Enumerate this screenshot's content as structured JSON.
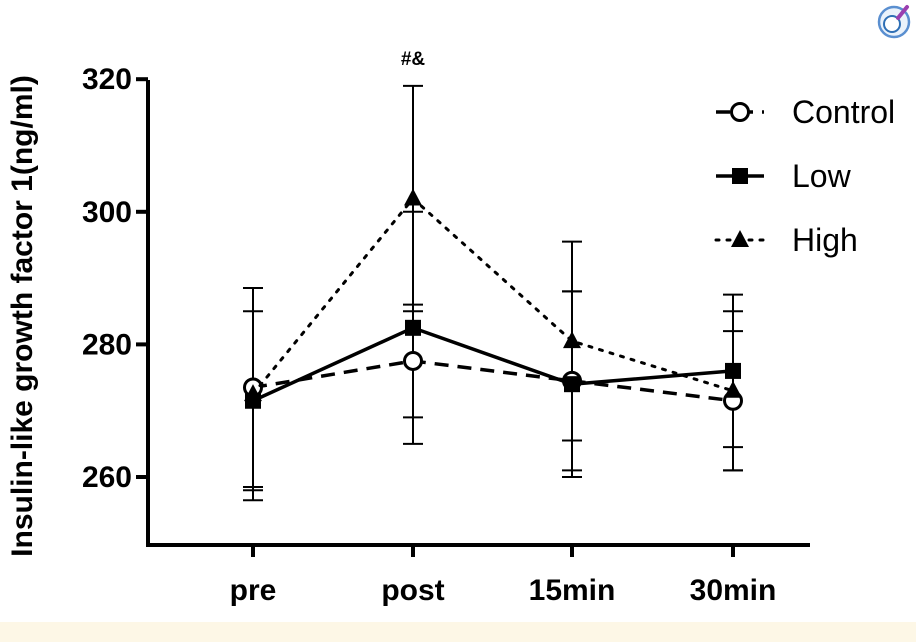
{
  "chart_data": {
    "type": "line",
    "title": "",
    "xlabel": "",
    "ylabel": "Insulin-like growth factor 1(ng/ml)",
    "categories": [
      "pre",
      "post",
      "15min",
      "30min"
    ],
    "y_ticks": [
      260,
      280,
      300,
      320
    ],
    "ylim": [
      250,
      330
    ],
    "grid": false,
    "legend_position": "top-right",
    "series": [
      {
        "name": "Control",
        "marker": "open-circle",
        "line_style": "dashed",
        "values": [
          273.5,
          277.5,
          274.5,
          271.5
        ],
        "error": [
          15,
          8.5,
          13.5,
          10.5
        ]
      },
      {
        "name": "Low",
        "marker": "filled-square",
        "line_style": "solid",
        "values": [
          271.5,
          282.5,
          274,
          276
        ],
        "error": [
          13.5,
          17.5,
          14,
          11.5
        ]
      },
      {
        "name": "High",
        "marker": "filled-triangle",
        "line_style": "dotted",
        "values": [
          272.5,
          302,
          280.5,
          273
        ],
        "error": [
          16,
          17,
          15,
          12
        ]
      }
    ],
    "annotations": [
      {
        "category": "post",
        "text": "#&"
      }
    ],
    "colors": {
      "lines": "#000000",
      "background": "#ffffff",
      "footer": "#fdf7e6"
    }
  },
  "icons": {
    "corner": "magnifier-icon"
  }
}
